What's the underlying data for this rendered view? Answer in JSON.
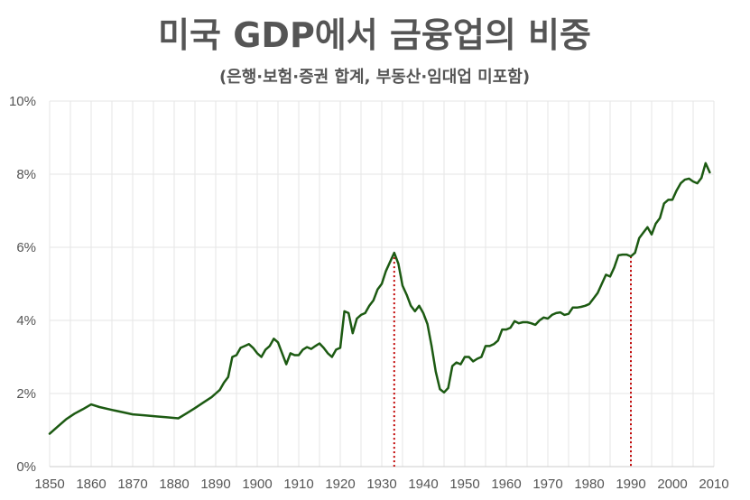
{
  "chart_data": {
    "type": "line",
    "title": "미국 GDP에서 금융업의 비중",
    "subtitle": "(은행·보험·증권 합계, 부동산·임대업 미포함)",
    "xlabel": "",
    "ylabel": "",
    "xlim": [
      1850,
      2010
    ],
    "ylim": [
      0,
      10
    ],
    "x_ticks": [
      "1850",
      "1860",
      "1870",
      "1880",
      "1890",
      "1900",
      "1910",
      "1920",
      "1930",
      "1940",
      "1950",
      "1960",
      "1970",
      "1980",
      "1990",
      "2000",
      "2010"
    ],
    "y_ticks": [
      0,
      2,
      4,
      6,
      8,
      10
    ],
    "y_tick_labels": [
      "0%",
      "2%",
      "4%",
      "6%",
      "8%",
      "10%"
    ],
    "grid": true,
    "legend": "none",
    "x": [
      1850,
      1852,
      1854,
      1856,
      1858,
      1860,
      1862,
      1865,
      1868,
      1870,
      1873,
      1876,
      1878,
      1881,
      1883,
      1885,
      1887,
      1889,
      1890,
      1891,
      1892,
      1893,
      1894,
      1895,
      1896,
      1897,
      1898,
      1899,
      1900,
      1901,
      1902,
      1903,
      1904,
      1905,
      1906,
      1907,
      1908,
      1909,
      1910,
      1911,
      1912,
      1913,
      1914,
      1915,
      1916,
      1917,
      1918,
      1919,
      1920,
      1921,
      1922,
      1923,
      1924,
      1925,
      1926,
      1927,
      1928,
      1929,
      1930,
      1931,
      1932,
      1933,
      1934,
      1935,
      1936,
      1937,
      1938,
      1939,
      1940,
      1941,
      1942,
      1943,
      1944,
      1945,
      1946,
      1947,
      1948,
      1949,
      1950,
      1951,
      1952,
      1953,
      1954,
      1955,
      1956,
      1957,
      1958,
      1959,
      1960,
      1961,
      1962,
      1963,
      1964,
      1965,
      1966,
      1967,
      1968,
      1969,
      1970,
      1971,
      1972,
      1973,
      1974,
      1975,
      1976,
      1977,
      1978,
      1979,
      1980,
      1981,
      1982,
      1983,
      1984,
      1985,
      1986,
      1987,
      1988,
      1989,
      1990,
      1991,
      1992,
      1993,
      1994,
      1995,
      1996,
      1997,
      1998,
      1999,
      2000,
      2001,
      2002,
      2003,
      2004,
      2005,
      2006,
      2007,
      2008,
      2009
    ],
    "y": [
      0.9,
      1.1,
      1.3,
      1.45,
      1.57,
      1.7,
      1.63,
      1.55,
      1.48,
      1.43,
      1.4,
      1.37,
      1.35,
      1.32,
      1.46,
      1.6,
      1.75,
      1.9,
      2.0,
      2.1,
      2.3,
      2.45,
      3.0,
      3.05,
      3.25,
      3.3,
      3.35,
      3.25,
      3.1,
      3.0,
      3.2,
      3.3,
      3.5,
      3.4,
      3.1,
      2.8,
      3.1,
      3.05,
      3.05,
      3.2,
      3.27,
      3.22,
      3.3,
      3.37,
      3.25,
      3.1,
      3.0,
      3.2,
      3.25,
      4.25,
      4.2,
      3.65,
      4.05,
      4.15,
      4.2,
      4.4,
      4.55,
      4.85,
      5.0,
      5.35,
      5.6,
      5.85,
      5.55,
      4.95,
      4.7,
      4.4,
      4.25,
      4.4,
      4.2,
      3.9,
      3.3,
      2.6,
      2.12,
      2.03,
      2.15,
      2.75,
      2.85,
      2.8,
      3.0,
      3.0,
      2.88,
      2.95,
      3.0,
      3.3,
      3.3,
      3.35,
      3.45,
      3.75,
      3.75,
      3.8,
      3.98,
      3.92,
      3.95,
      3.95,
      3.92,
      3.88,
      4.0,
      4.08,
      4.05,
      4.15,
      4.2,
      4.22,
      4.15,
      4.18,
      4.35,
      4.35,
      4.37,
      4.4,
      4.45,
      4.6,
      4.75,
      5.0,
      5.25,
      5.2,
      5.45,
      5.78,
      5.8,
      5.8,
      5.75,
      5.85,
      6.25,
      6.4,
      6.55,
      6.35,
      6.65,
      6.8,
      7.2,
      7.3,
      7.3,
      7.55,
      7.75,
      7.85,
      7.88,
      7.8,
      7.75,
      7.9,
      8.3,
      8.05
    ],
    "reference_lines": [
      {
        "x": 1933,
        "style": "dotted"
      },
      {
        "x": 1990,
        "style": "dotted"
      }
    ]
  },
  "colors": {
    "line": "#1c5a12",
    "reference": "#c00000",
    "text": "#555555",
    "grid": "#e6e6e6"
  }
}
